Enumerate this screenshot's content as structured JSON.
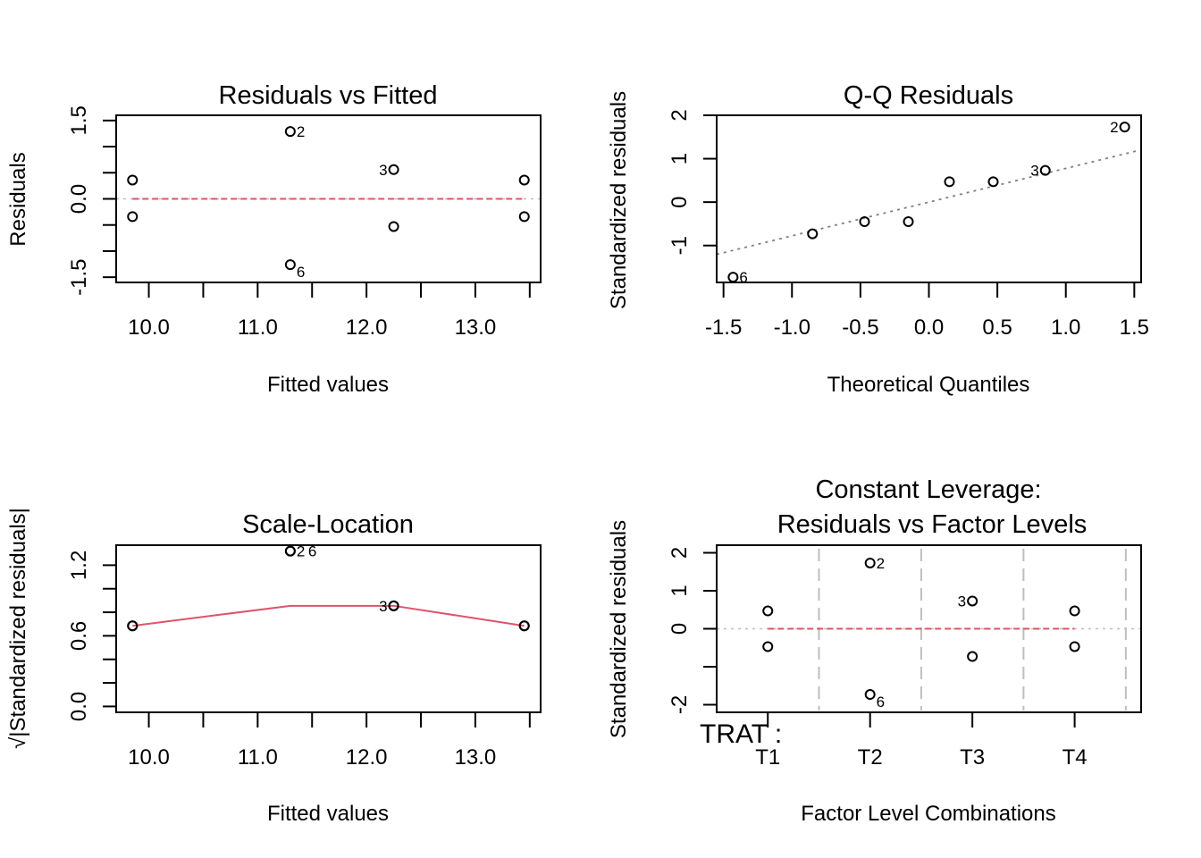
{
  "chart_data": [
    {
      "type": "scatter",
      "title": "Residuals vs Fitted",
      "xlabel": "Fitted values",
      "ylabel": "Residuals",
      "xlim": [
        9.7,
        13.6
      ],
      "ylim": [
        -1.6,
        1.6
      ],
      "xticks": [
        10.0,
        10.5,
        11.0,
        11.5,
        12.0,
        12.5,
        13.0,
        13.5
      ],
      "xtick_labels": [
        "10.0",
        "",
        "11.0",
        "",
        "12.0",
        "",
        "13.0",
        ""
      ],
      "yticks": [
        1.5,
        1.0,
        0.5,
        0.0,
        -0.5,
        -1.0,
        -1.5
      ],
      "ytick_labels": [
        "1.5",
        "",
        "",
        "0.0",
        "",
        "",
        "-1.5"
      ],
      "reference_line": {
        "y": 0,
        "style": "dotted",
        "color": "#BEBEBE"
      },
      "smooth_line": {
        "x": [
          9.85,
          13.45
        ],
        "y": [
          0,
          0
        ],
        "style": "dashed",
        "color": "#DF536B"
      },
      "points": [
        {
          "x": 9.85,
          "y": 0.36,
          "label": ""
        },
        {
          "x": 9.85,
          "y": -0.34,
          "label": ""
        },
        {
          "x": 11.3,
          "y": 1.29,
          "label": "2"
        },
        {
          "x": 11.3,
          "y": -1.26,
          "label": "6"
        },
        {
          "x": 12.25,
          "y": 0.56,
          "label": "3"
        },
        {
          "x": 12.25,
          "y": -0.53,
          "label": ""
        },
        {
          "x": 13.45,
          "y": 0.36,
          "label": ""
        },
        {
          "x": 13.45,
          "y": -0.34,
          "label": ""
        }
      ]
    },
    {
      "type": "scatter",
      "title": "Q-Q Residuals",
      "xlabel": "Theoretical Quantiles",
      "ylabel": "Standardized residuals",
      "xlim": [
        -1.55,
        1.55
      ],
      "ylim": [
        -1.85,
        2.0
      ],
      "xticks": [
        -1.5,
        -1.0,
        -0.5,
        0.0,
        0.5,
        1.0,
        1.5
      ],
      "xtick_labels": [
        "-1.5",
        "-1.0",
        "-0.5",
        "0.0",
        "0.5",
        "1.0",
        "1.5"
      ],
      "yticks": [
        2,
        1,
        0,
        -1
      ],
      "ytick_labels": [
        "2",
        "1",
        "0",
        "-1"
      ],
      "qq_line": {
        "intercept": 0.0,
        "slope": 0.777,
        "style": "dotted",
        "color": "#808080"
      },
      "points": [
        {
          "x": -1.43,
          "y": -1.73,
          "label": "6"
        },
        {
          "x": -0.85,
          "y": -0.73,
          "label": ""
        },
        {
          "x": -0.47,
          "y": -0.45,
          "label": ""
        },
        {
          "x": -0.15,
          "y": -0.45,
          "label": ""
        },
        {
          "x": 0.15,
          "y": 0.47,
          "label": ""
        },
        {
          "x": 0.47,
          "y": 0.47,
          "label": ""
        },
        {
          "x": 0.85,
          "y": 0.73,
          "label": "3"
        },
        {
          "x": 1.43,
          "y": 1.73,
          "label": "2"
        }
      ]
    },
    {
      "type": "scatter",
      "title": "Scale-Location",
      "xlabel": "Fitted values",
      "ylabel": "√|Standardized residuals|",
      "xlim": [
        9.7,
        13.6
      ],
      "ylim": [
        -0.05,
        1.37
      ],
      "xticks": [
        10.0,
        10.5,
        11.0,
        11.5,
        12.0,
        12.5,
        13.0,
        13.5
      ],
      "xtick_labels": [
        "10.0",
        "",
        "11.0",
        "",
        "12.0",
        "",
        "13.0",
        ""
      ],
      "yticks": [
        1.2,
        1.0,
        0.8,
        0.6,
        0.4,
        0.2,
        0.0
      ],
      "ytick_labels": [
        "1.2",
        "",
        "",
        "0.6",
        "",
        "",
        "0.0"
      ],
      "smooth_line": {
        "x": [
          9.85,
          11.3,
          12.25,
          13.45
        ],
        "y": [
          0.685,
          0.855,
          0.855,
          0.685
        ],
        "style": "solid",
        "color": "#DF536B"
      },
      "points": [
        {
          "x": 9.85,
          "y": 0.685,
          "label": ""
        },
        {
          "x": 9.85,
          "y": 0.685,
          "label": ""
        },
        {
          "x": 11.3,
          "y": 1.32,
          "label": "2"
        },
        {
          "x": 11.3,
          "y": 1.32,
          "label": "6"
        },
        {
          "x": 12.25,
          "y": 0.855,
          "label": "3"
        },
        {
          "x": 12.25,
          "y": 0.855,
          "label": ""
        },
        {
          "x": 13.45,
          "y": 0.685,
          "label": ""
        },
        {
          "x": 13.45,
          "y": 0.685,
          "label": ""
        }
      ]
    },
    {
      "type": "scatter",
      "title": "Constant Leverage:",
      "subtitle": "Residuals vs Factor Levels",
      "xlabel": "Factor Level Combinations",
      "ylabel": "Standardized residuals",
      "factor_name": "TRAT :",
      "categories": [
        "T1",
        "T2",
        "T3",
        "T4"
      ],
      "xlim": [
        0.5,
        4.65
      ],
      "ylim": [
        -2.2,
        2.2
      ],
      "yticks": [
        2,
        1,
        0,
        -1,
        -2
      ],
      "ytick_labels": [
        "2",
        "1",
        "0",
        "",
        "-2"
      ],
      "separators": [
        0.5,
        1.5,
        2.5,
        3.5,
        4.5
      ],
      "reference_line": {
        "y": 0,
        "style": "dotted",
        "color": "#BEBEBE"
      },
      "smooth_line": {
        "x": [
          1,
          4
        ],
        "y": [
          0,
          0
        ],
        "style": "dashed",
        "color": "#DF536B"
      },
      "points": [
        {
          "x": 1,
          "y": 0.47,
          "label": ""
        },
        {
          "x": 1,
          "y": -0.47,
          "label": ""
        },
        {
          "x": 2,
          "y": 1.73,
          "label": "2"
        },
        {
          "x": 2,
          "y": -1.73,
          "label": "6"
        },
        {
          "x": 3,
          "y": 0.73,
          "label": "3"
        },
        {
          "x": 3,
          "y": -0.73,
          "label": ""
        },
        {
          "x": 4,
          "y": 0.47,
          "label": ""
        },
        {
          "x": 4,
          "y": -0.47,
          "label": ""
        }
      ]
    }
  ]
}
